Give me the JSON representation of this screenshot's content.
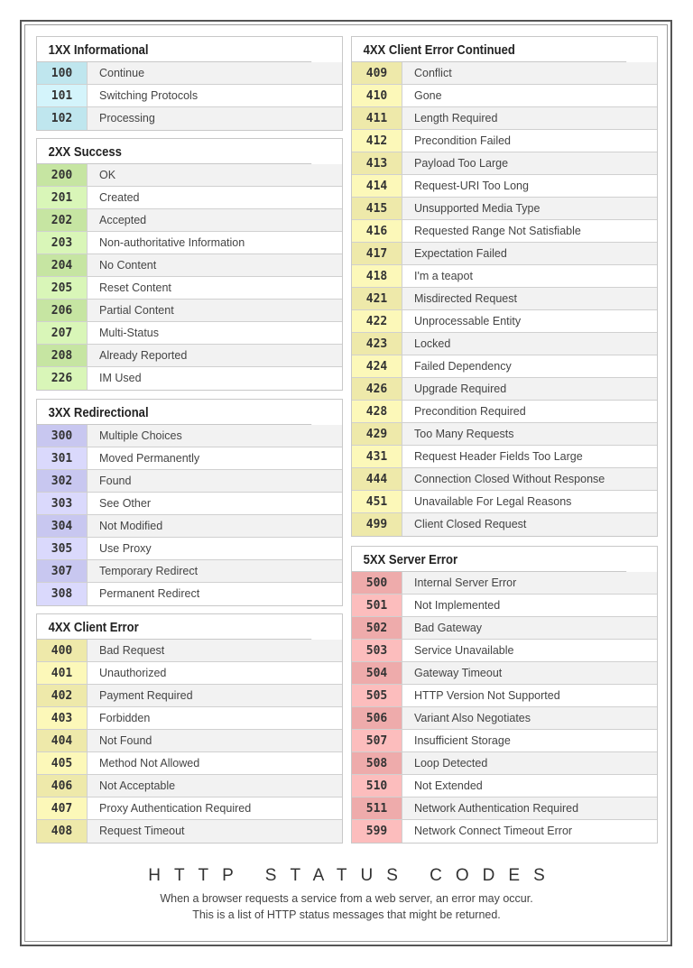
{
  "sections": {
    "s1": {
      "title": "1XX Informational",
      "colors": [
        "#bfe6ee",
        "#d4f4fb"
      ],
      "rows": [
        {
          "code": "100",
          "text": "Continue"
        },
        {
          "code": "101",
          "text": "Switching Protocols"
        },
        {
          "code": "102",
          "text": "Processing"
        }
      ]
    },
    "s2": {
      "title": "2XX Success",
      "colors": [
        "#c6e5a2",
        "#d9f6b8"
      ],
      "rows": [
        {
          "code": "200",
          "text": "OK"
        },
        {
          "code": "201",
          "text": "Created"
        },
        {
          "code": "202",
          "text": "Accepted"
        },
        {
          "code": "203",
          "text": "Non-authoritative Information"
        },
        {
          "code": "204",
          "text": "No Content"
        },
        {
          "code": "205",
          "text": "Reset Content"
        },
        {
          "code": "206",
          "text": "Partial Content"
        },
        {
          "code": "207",
          "text": "Multi-Status"
        },
        {
          "code": "208",
          "text": "Already Reported"
        },
        {
          "code": "226",
          "text": "IM Used"
        }
      ]
    },
    "s3": {
      "title": "3XX Redirectional",
      "colors": [
        "#c8c7f0",
        "#dad9fc"
      ],
      "rows": [
        {
          "code": "300",
          "text": "Multiple Choices"
        },
        {
          "code": "301",
          "text": "Moved Permanently"
        },
        {
          "code": "302",
          "text": "Found"
        },
        {
          "code": "303",
          "text": "See Other"
        },
        {
          "code": "304",
          "text": "Not Modified"
        },
        {
          "code": "305",
          "text": "Use Proxy"
        },
        {
          "code": "307",
          "text": "Temporary Redirect"
        },
        {
          "code": "308",
          "text": "Permanent Redirect"
        }
      ]
    },
    "s4": {
      "title": "4XX Client Error",
      "colors": [
        "#eee9aa",
        "#fcf8b9"
      ],
      "rows": [
        {
          "code": "400",
          "text": "Bad Request"
        },
        {
          "code": "401",
          "text": "Unauthorized"
        },
        {
          "code": "402",
          "text": "Payment Required"
        },
        {
          "code": "403",
          "text": "Forbidden"
        },
        {
          "code": "404",
          "text": "Not Found"
        },
        {
          "code": "405",
          "text": "Method Not Allowed"
        },
        {
          "code": "406",
          "text": "Not Acceptable"
        },
        {
          "code": "407",
          "text": "Proxy Authentication Required"
        },
        {
          "code": "408",
          "text": "Request Timeout"
        }
      ]
    },
    "s4c": {
      "title": "4XX Client Error Continued",
      "colors": [
        "#eee9aa",
        "#fcf8b9"
      ],
      "rows": [
        {
          "code": "409",
          "text": "Conflict"
        },
        {
          "code": "410",
          "text": "Gone"
        },
        {
          "code": "411",
          "text": "Length Required"
        },
        {
          "code": "412",
          "text": "Precondition Failed"
        },
        {
          "code": "413",
          "text": "Payload Too Large"
        },
        {
          "code": "414",
          "text": "Request-URI Too Long"
        },
        {
          "code": "415",
          "text": "Unsupported Media Type"
        },
        {
          "code": "416",
          "text": "Requested Range Not Satisfiable"
        },
        {
          "code": "417",
          "text": "Expectation Failed"
        },
        {
          "code": "418",
          "text": "I'm a teapot"
        },
        {
          "code": "421",
          "text": "Misdirected Request"
        },
        {
          "code": "422",
          "text": "Unprocessable Entity"
        },
        {
          "code": "423",
          "text": "Locked"
        },
        {
          "code": "424",
          "text": "Failed Dependency"
        },
        {
          "code": "426",
          "text": "Upgrade Required"
        },
        {
          "code": "428",
          "text": "Precondition Required"
        },
        {
          "code": "429",
          "text": "Too Many Requests"
        },
        {
          "code": "431",
          "text": "Request Header Fields Too Large"
        },
        {
          "code": "444",
          "text": "Connection Closed Without Response"
        },
        {
          "code": "451",
          "text": "Unavailable For Legal Reasons"
        },
        {
          "code": "499",
          "text": "Client Closed Request"
        }
      ]
    },
    "s5": {
      "title": "5XX Server Error",
      "colors": [
        "#eeabab",
        "#fcbdbd"
      ],
      "rows": [
        {
          "code": "500",
          "text": "Internal Server Error"
        },
        {
          "code": "501",
          "text": "Not Implemented"
        },
        {
          "code": "502",
          "text": "Bad Gateway"
        },
        {
          "code": "503",
          "text": "Service Unavailable"
        },
        {
          "code": "504",
          "text": "Gateway Timeout"
        },
        {
          "code": "505",
          "text": "HTTP Version Not Supported"
        },
        {
          "code": "506",
          "text": "Variant Also Negotiates"
        },
        {
          "code": "507",
          "text": "Insufficient Storage"
        },
        {
          "code": "508",
          "text": "Loop Detected"
        },
        {
          "code": "510",
          "text": "Not Extended"
        },
        {
          "code": "511",
          "text": "Network Authentication Required"
        },
        {
          "code": "599",
          "text": "Network Connect Timeout Error"
        }
      ]
    }
  },
  "footer": {
    "title": "HTTP STATUS CODES",
    "line1": "When a browser requests a service from a web server, an error may occur.",
    "line2": "This is a list of HTTP status messages that might be returned."
  }
}
